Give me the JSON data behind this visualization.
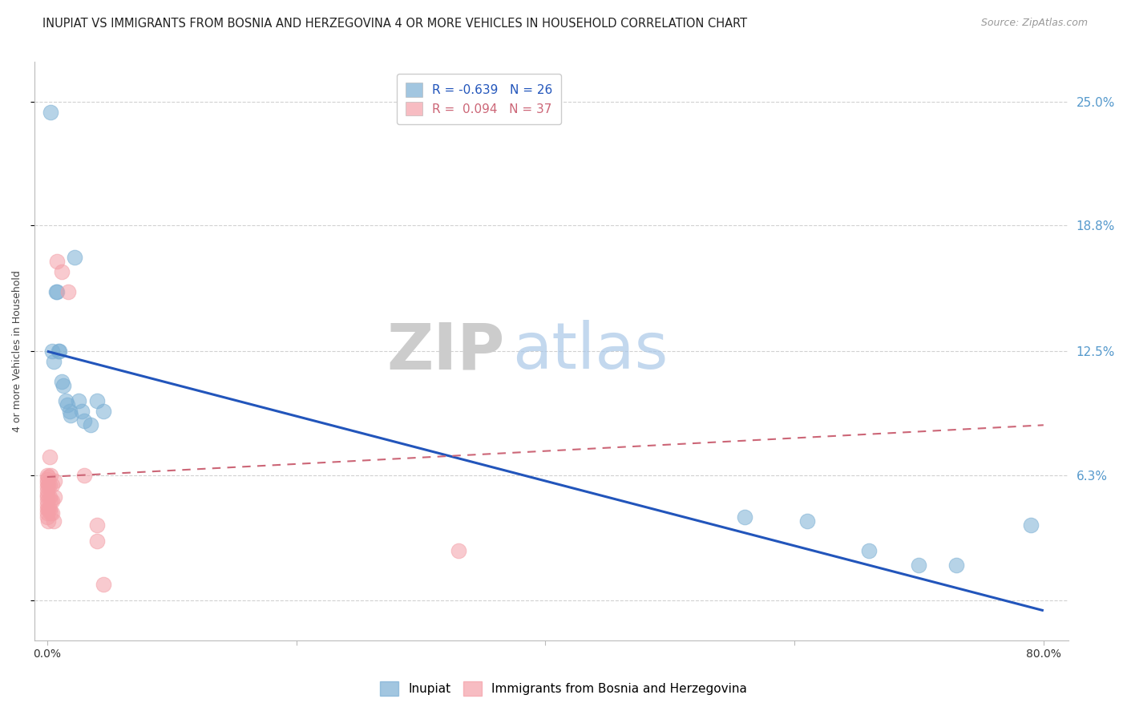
{
  "title": "INUPIAT VS IMMIGRANTS FROM BOSNIA AND HERZEGOVINA 4 OR MORE VEHICLES IN HOUSEHOLD CORRELATION CHART",
  "source": "Source: ZipAtlas.com",
  "ylabel": "4 or more Vehicles in Household",
  "xlim": [
    -0.01,
    0.82
  ],
  "ylim": [
    -0.02,
    0.27
  ],
  "yticks": [
    0.0,
    0.063,
    0.125,
    0.188,
    0.25
  ],
  "ytick_labels": [
    "",
    "6.3%",
    "12.5%",
    "18.8%",
    "25.0%"
  ],
  "xticks": [
    0.0,
    0.2,
    0.4,
    0.6,
    0.8
  ],
  "xtick_labels": [
    "0.0%",
    "",
    "",
    "",
    "80.0%"
  ],
  "background_color": "#ffffff",
  "inupiat_color": "#7bafd4",
  "immigrant_color": "#f4a0a8",
  "inupiat_R": -0.639,
  "inupiat_N": 26,
  "immigrant_R": 0.094,
  "immigrant_N": 37,
  "inupiat_line_color": "#2255bb",
  "immigrant_line_color": "#cc6677",
  "blue_line_x0": 0.0,
  "blue_line_y0": 0.125,
  "blue_line_x1": 0.8,
  "blue_line_y1": -0.005,
  "pink_line_x0": 0.0,
  "pink_line_y0": 0.062,
  "pink_line_x1": 0.8,
  "pink_line_y1": 0.088,
  "inupiat_scatter": [
    [
      0.003,
      0.245
    ],
    [
      0.004,
      0.125
    ],
    [
      0.005,
      0.12
    ],
    [
      0.007,
      0.155
    ],
    [
      0.008,
      0.155
    ],
    [
      0.009,
      0.125
    ],
    [
      0.01,
      0.125
    ],
    [
      0.012,
      0.11
    ],
    [
      0.013,
      0.108
    ],
    [
      0.015,
      0.1
    ],
    [
      0.016,
      0.098
    ],
    [
      0.018,
      0.095
    ],
    [
      0.019,
      0.093
    ],
    [
      0.022,
      0.172
    ],
    [
      0.025,
      0.1
    ],
    [
      0.028,
      0.095
    ],
    [
      0.03,
      0.09
    ],
    [
      0.035,
      0.088
    ],
    [
      0.04,
      0.1
    ],
    [
      0.045,
      0.095
    ],
    [
      0.56,
      0.042
    ],
    [
      0.61,
      0.04
    ],
    [
      0.66,
      0.025
    ],
    [
      0.7,
      0.018
    ],
    [
      0.73,
      0.018
    ],
    [
      0.79,
      0.038
    ]
  ],
  "immigrant_scatter": [
    [
      0.0,
      0.063
    ],
    [
      0.0,
      0.061
    ],
    [
      0.0,
      0.059
    ],
    [
      0.0,
      0.057
    ],
    [
      0.0,
      0.055
    ],
    [
      0.0,
      0.053
    ],
    [
      0.0,
      0.052
    ],
    [
      0.0,
      0.05
    ],
    [
      0.0,
      0.048
    ],
    [
      0.0,
      0.046
    ],
    [
      0.0,
      0.044
    ],
    [
      0.0,
      0.042
    ],
    [
      0.001,
      0.062
    ],
    [
      0.001,
      0.058
    ],
    [
      0.001,
      0.046
    ],
    [
      0.001,
      0.04
    ],
    [
      0.002,
      0.072
    ],
    [
      0.002,
      0.058
    ],
    [
      0.002,
      0.052
    ],
    [
      0.002,
      0.046
    ],
    [
      0.003,
      0.063
    ],
    [
      0.003,
      0.05
    ],
    [
      0.003,
      0.044
    ],
    [
      0.004,
      0.058
    ],
    [
      0.004,
      0.05
    ],
    [
      0.004,
      0.044
    ],
    [
      0.005,
      0.04
    ],
    [
      0.006,
      0.06
    ],
    [
      0.006,
      0.052
    ],
    [
      0.008,
      0.17
    ],
    [
      0.012,
      0.165
    ],
    [
      0.017,
      0.155
    ],
    [
      0.03,
      0.063
    ],
    [
      0.04,
      0.038
    ],
    [
      0.04,
      0.03
    ],
    [
      0.045,
      0.008
    ],
    [
      0.33,
      0.025
    ]
  ],
  "grid_color": "#cccccc",
  "title_fontsize": 10.5,
  "axis_label_fontsize": 9,
  "tick_fontsize": 10,
  "legend_fontsize": 11,
  "right_tick_color": "#5599cc"
}
